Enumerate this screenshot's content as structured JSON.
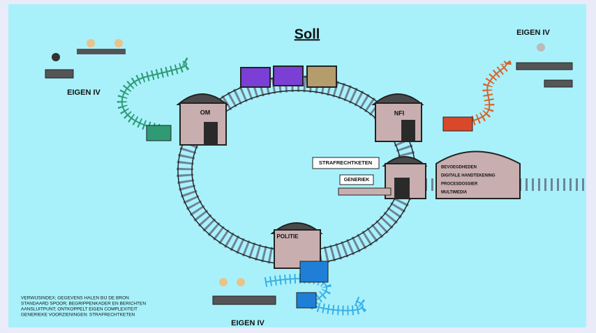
{
  "title": "Soll",
  "groups": [
    {
      "label": "EIGEN IV"
    },
    {
      "label": "EIGEN IV"
    },
    {
      "label": "EIGEN IV"
    }
  ],
  "stations": [
    {
      "label": "OM"
    },
    {
      "label": "NFI"
    },
    {
      "label": "POLITIE"
    }
  ],
  "chain": {
    "label": "STRAFRECHTKETEN",
    "sublabel": "GENERIEK",
    "services": [
      "BEVOEGDHEDEN",
      "DIGITALE HANDTEKENING",
      "PROCESDOSSIER",
      "MULTIMEDIA"
    ]
  },
  "notes": [
    "VERWIJSINDEX; GEGEVENS HALEN BIJ DE BRON",
    "STANDAARD SPOOR; BEGRIPPENKADER EN BERICHTEN",
    "AANSLUITPUNT; ONTKOPPELT EIGEN COMPLEXITEIT",
    "GENERIEKE VOORZIENINGEN: STRAFRECHTKETEN"
  ]
}
